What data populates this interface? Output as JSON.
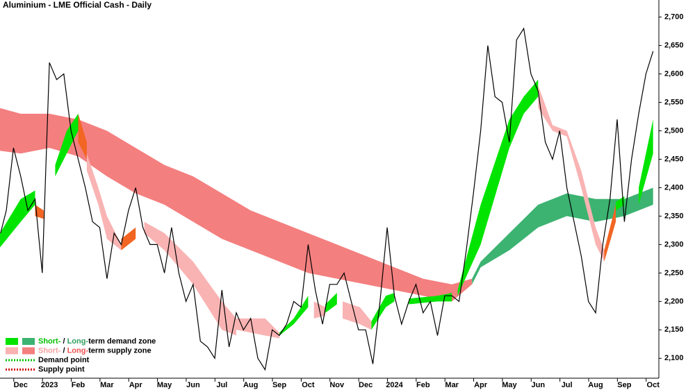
{
  "chart_data": {
    "type": "line",
    "title": "Aluminium - LME Official Cash - Daily",
    "xlim": [
      -0.72,
      22.2
    ],
    "xticks": [
      {
        "value": 0,
        "label": "Dec"
      },
      {
        "value": 1,
        "label": "2023"
      },
      {
        "value": 2,
        "label": "Feb"
      },
      {
        "value": 3,
        "label": "Mar"
      },
      {
        "value": 4,
        "label": "Apr"
      },
      {
        "value": 5,
        "label": "May"
      },
      {
        "value": 6,
        "label": "Jun"
      },
      {
        "value": 7,
        "label": "Jul"
      },
      {
        "value": 8,
        "label": "Aug"
      },
      {
        "value": 9,
        "label": "Sep"
      },
      {
        "value": 10,
        "label": "Oct"
      },
      {
        "value": 11,
        "label": "Nov"
      },
      {
        "value": 12,
        "label": "Dec"
      },
      {
        "value": 13,
        "label": "2024"
      },
      {
        "value": 14,
        "label": "Feb"
      },
      {
        "value": 15,
        "label": "Mar"
      },
      {
        "value": 16,
        "label": "Apr"
      },
      {
        "value": 17,
        "label": "May"
      },
      {
        "value": 18,
        "label": "Jun"
      },
      {
        "value": 19,
        "label": "Jul"
      },
      {
        "value": 20,
        "label": "Aug"
      },
      {
        "value": 21,
        "label": "Sep"
      },
      {
        "value": 22,
        "label": "Oct"
      }
    ],
    "ylim": [
      2065,
      2730
    ],
    "yticks": [
      {
        "value": 2100,
        "label": "2,100"
      },
      {
        "value": 2150,
        "label": "2,150"
      },
      {
        "value": 2200,
        "label": "2,200"
      },
      {
        "value": 2250,
        "label": "2,250"
      },
      {
        "value": 2300,
        "label": "2,300"
      },
      {
        "value": 2350,
        "label": "2,350"
      },
      {
        "value": 2400,
        "label": "2,400"
      },
      {
        "value": 2450,
        "label": "2,450"
      },
      {
        "value": 2500,
        "label": "2,500"
      },
      {
        "value": 2550,
        "label": "2,550"
      },
      {
        "value": 2600,
        "label": "2,600"
      },
      {
        "value": 2650,
        "label": "2,650"
      },
      {
        "value": 2700,
        "label": "2,700"
      }
    ],
    "series": [
      {
        "color": "#000000",
        "x": [
          -0.7,
          -0.5,
          -0.25,
          0,
          0.25,
          0.5,
          0.75,
          1,
          1.25,
          1.5,
          1.75,
          2,
          2.25,
          2.5,
          2.75,
          3,
          3.25,
          3.5,
          3.75,
          4,
          4.25,
          4.5,
          4.75,
          5,
          5.25,
          5.5,
          5.75,
          6,
          6.25,
          6.5,
          6.75,
          7,
          7.25,
          7.5,
          7.75,
          8,
          8.25,
          8.5,
          8.75,
          9,
          9.25,
          9.5,
          9.75,
          10,
          10.25,
          10.5,
          10.75,
          11,
          11.25,
          11.5,
          11.75,
          12,
          12.25,
          12.5,
          12.75,
          13,
          13.25,
          13.5,
          13.75,
          14,
          14.25,
          14.5,
          14.75,
          15,
          15.25,
          15.5,
          15.75,
          16,
          16.25,
          16.5,
          16.75,
          17,
          17.25,
          17.5,
          17.75,
          18,
          18.25,
          18.5,
          18.75,
          19,
          19.25,
          19.5,
          19.75,
          20,
          20.25,
          20.5,
          20.75,
          21,
          21.25,
          21.5,
          21.75,
          22
        ],
        "values": [
          2320,
          2360,
          2470,
          2420,
          2360,
          2380,
          2250,
          2620,
          2590,
          2600,
          2500,
          2450,
          2400,
          2340,
          2330,
          2240,
          2320,
          2300,
          2360,
          2400,
          2330,
          2300,
          2300,
          2250,
          2330,
          2250,
          2200,
          2230,
          2130,
          2120,
          2100,
          2220,
          2120,
          2180,
          2150,
          2170,
          2100,
          2080,
          2150,
          2140,
          2160,
          2200,
          2190,
          2300,
          2220,
          2160,
          2230,
          2230,
          2250,
          2200,
          2150,
          2150,
          2090,
          2200,
          2330,
          2210,
          2160,
          2200,
          2230,
          2180,
          2200,
          2140,
          2210,
          2210,
          2200,
          2290,
          2390,
          2500,
          2650,
          2560,
          2550,
          2480,
          2660,
          2680,
          2600,
          2570,
          2480,
          2450,
          2500,
          2400,
          2340,
          2280,
          2200,
          2180,
          2300,
          2380,
          2520,
          2340,
          2450,
          2530,
          2600,
          2640
        ]
      }
    ],
    "zones": [
      {
        "color": "#f47f7f",
        "x": [
          -0.72,
          0,
          1,
          2,
          3,
          4,
          5,
          6,
          7,
          8,
          9,
          10,
          11,
          12,
          13,
          14,
          15,
          15.7
        ],
        "lower": [
          2465,
          2460,
          2470,
          2455,
          2420,
          2390,
          2370,
          2340,
          2310,
          2290,
          2270,
          2250,
          2240,
          2230,
          2220,
          2210,
          2200,
          2230
        ],
        "upper": [
          2540,
          2530,
          2530,
          2520,
          2500,
          2470,
          2440,
          2420,
          2390,
          2360,
          2340,
          2320,
          2300,
          2280,
          2260,
          2240,
          2230,
          2240
        ]
      },
      {
        "color": "#3cb371",
        "x": [
          15.7,
          16,
          17,
          18,
          19,
          20,
          21,
          22
        ],
        "lower": [
          2230,
          2260,
          2290,
          2330,
          2350,
          2340,
          2350,
          2370
        ],
        "upper": [
          2240,
          2270,
          2320,
          2370,
          2390,
          2380,
          2380,
          2400
        ]
      },
      {
        "color": "#00e400",
        "x": [
          -0.72,
          0,
          0.5
        ],
        "lower": [
          2295,
          2340,
          2370
        ],
        "upper": [
          2320,
          2380,
          2395
        ]
      },
      {
        "color": "#f26522",
        "x": [
          0.5,
          0.8
        ],
        "lower": [
          2350,
          2345
        ],
        "upper": [
          2370,
          2360
        ]
      },
      {
        "color": "#00e400",
        "x": [
          1.2,
          1.6,
          2
        ],
        "lower": [
          2420,
          2460,
          2500
        ],
        "upper": [
          2440,
          2500,
          2530
        ]
      },
      {
        "color": "#f26522",
        "x": [
          2,
          2.3
        ],
        "lower": [
          2480,
          2450
        ],
        "upper": [
          2530,
          2480
        ]
      },
      {
        "color": "#f9b3b3",
        "x": [
          2.3,
          2.7,
          3,
          3.5
        ],
        "lower": [
          2430,
          2370,
          2310,
          2290
        ],
        "upper": [
          2460,
          2400,
          2350,
          2300
        ]
      },
      {
        "color": "#f26522",
        "x": [
          3.5,
          4
        ],
        "lower": [
          2290,
          2310
        ],
        "upper": [
          2310,
          2330
        ]
      },
      {
        "color": "#f9b3b3",
        "x": [
          4.3,
          5,
          6,
          7,
          7.5
        ],
        "lower": [
          2320,
          2290,
          2230,
          2150,
          2140
        ],
        "upper": [
          2340,
          2320,
          2270,
          2200,
          2170
        ]
      },
      {
        "color": "#f9b3b3",
        "x": [
          7.5,
          8.5,
          9
        ],
        "lower": [
          2150,
          2140,
          2135
        ],
        "upper": [
          2170,
          2170,
          2145
        ]
      },
      {
        "color": "#00e400",
        "x": [
          9,
          9.5,
          10
        ],
        "lower": [
          2140,
          2160,
          2190
        ],
        "upper": [
          2145,
          2170,
          2210
        ]
      },
      {
        "color": "#f9b3b3",
        "x": [
          10.2,
          10.6
        ],
        "lower": [
          2170,
          2175
        ],
        "upper": [
          2200,
          2190
        ]
      },
      {
        "color": "#00e400",
        "x": [
          10.6,
          11
        ],
        "lower": [
          2180,
          2195
        ],
        "upper": [
          2195,
          2215
        ]
      },
      {
        "color": "#f9b3b3",
        "x": [
          11.2,
          11.8,
          12.2
        ],
        "lower": [
          2170,
          2160,
          2150
        ],
        "upper": [
          2200,
          2190,
          2165
        ]
      },
      {
        "color": "#00e400",
        "x": [
          12.2,
          12.7,
          13
        ],
        "lower": [
          2150,
          2190,
          2200
        ],
        "upper": [
          2165,
          2210,
          2215
        ]
      },
      {
        "color": "#00e400",
        "x": [
          13.5,
          14.5,
          15
        ],
        "lower": [
          2195,
          2200,
          2200
        ],
        "upper": [
          2205,
          2210,
          2215
        ]
      },
      {
        "color": "#00e400",
        "x": [
          15.2,
          16,
          17,
          17.5,
          18
        ],
        "lower": [
          2210,
          2300,
          2470,
          2530,
          2560
        ],
        "upper": [
          2220,
          2370,
          2520,
          2560,
          2590
        ]
      },
      {
        "color": "#f9b3b3",
        "x": [
          18,
          18.5,
          19,
          19.5,
          20,
          20.3
        ],
        "lower": [
          2540,
          2500,
          2490,
          2400,
          2300,
          2270
        ],
        "upper": [
          2580,
          2510,
          2500,
          2430,
          2330,
          2290
        ]
      },
      {
        "color": "#f26522",
        "x": [
          20.3,
          20.7
        ],
        "lower": [
          2270,
          2340
        ],
        "upper": [
          2290,
          2370
        ]
      },
      {
        "color": "#00e400",
        "x": [
          20.7,
          21
        ],
        "lower": [
          2360,
          2370
        ],
        "upper": [
          2375,
          2385
        ]
      },
      {
        "color": "#00e400",
        "x": [
          21.5,
          22
        ],
        "lower": [
          2370,
          2460
        ],
        "upper": [
          2400,
          2520
        ]
      }
    ],
    "legend": [
      {
        "swatches": [
          "#00e400",
          "#3cb371"
        ],
        "parts": [
          "Short-",
          " / ",
          "Long-",
          "term demand zone"
        ],
        "part_colors": [
          "#00c000",
          "#000000",
          "#2e9e5e",
          "#000000"
        ]
      },
      {
        "swatches": [
          "#f9b3b3",
          "#f47f7f"
        ],
        "parts": [
          "Short-",
          " / ",
          "Long-",
          "term supply zone"
        ],
        "part_colors": [
          "#f4a0a0",
          "#000000",
          "#f05050",
          "#000000"
        ]
      },
      {
        "dots": "#00c000",
        "parts": [
          "Demand point"
        ],
        "part_colors": [
          "#000000"
        ]
      },
      {
        "dots": "#d00000",
        "parts": [
          "Supply point"
        ],
        "part_colors": [
          "#000000"
        ]
      }
    ]
  }
}
